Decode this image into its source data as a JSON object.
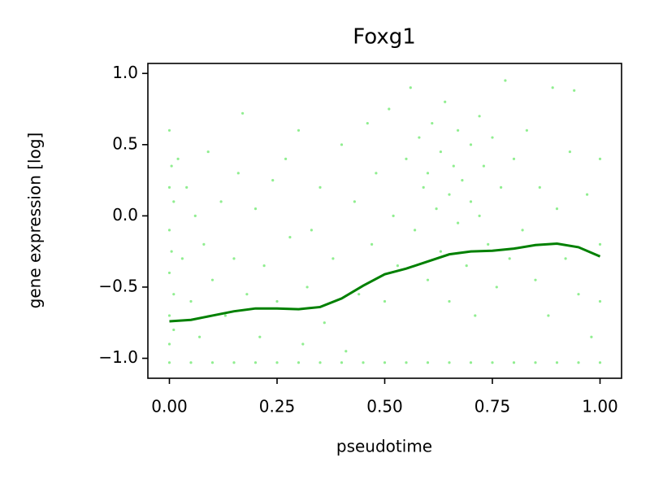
{
  "chart_data": {
    "type": "scatter",
    "title": "Foxg1",
    "xlabel": "pseudotime",
    "ylabel": "gene expression [log]",
    "xlim": [
      -0.05,
      1.05
    ],
    "ylim": [
      -1.14,
      1.07
    ],
    "xticks": [
      {
        "value": 0,
        "label": "0.00"
      },
      {
        "value": 0.25,
        "label": "0.25"
      },
      {
        "value": 0.5,
        "label": "0.50"
      },
      {
        "value": 0.75,
        "label": "0.75"
      },
      {
        "value": 1,
        "label": "1.00"
      }
    ],
    "yticks": [
      {
        "value": -1,
        "label": "−1.0"
      },
      {
        "value": -0.5,
        "label": "−0.5"
      },
      {
        "value": 0,
        "label": "0.0"
      },
      {
        "value": 0.5,
        "label": "0.5"
      },
      {
        "value": 1,
        "label": "1.0"
      }
    ],
    "series": [
      {
        "type": "scatter",
        "color": "#90ee90",
        "x": [
          0,
          0,
          0,
          0,
          0,
          0,
          0.005,
          0.005,
          0.01,
          0.01,
          0.01,
          0.02,
          0.03,
          0.04,
          0.05,
          0.06,
          0.07,
          0.08,
          0.09,
          0.1,
          0.12,
          0.13,
          0.15,
          0.16,
          0.17,
          0.18,
          0.2,
          0.21,
          0.22,
          0.24,
          0.25,
          0.27,
          0.28,
          0.3,
          0.31,
          0.32,
          0.33,
          0.35,
          0.36,
          0.38,
          0.4,
          0.41,
          0.43,
          0.44,
          0.46,
          0.47,
          0.48,
          0.5,
          0.51,
          0.52,
          0.53,
          0.55,
          0.56,
          0.57,
          0.58,
          0.59,
          0.6,
          0.6,
          0.61,
          0.62,
          0.63,
          0.63,
          0.64,
          0.65,
          0.65,
          0.66,
          0.67,
          0.67,
          0.68,
          0.69,
          0.7,
          0.7,
          0.71,
          0.72,
          0.72,
          0.73,
          0.74,
          0.75,
          0.76,
          0.77,
          0.78,
          0.79,
          0.8,
          0.82,
          0.83,
          0.85,
          0.86,
          0.88,
          0.89,
          0.9,
          0.92,
          0.93,
          0.94,
          0.95,
          0.97,
          0.98,
          1,
          1,
          1,
          0,
          0.05,
          0.1,
          0.15,
          0.2,
          0.25,
          0.3,
          0.35,
          0.4,
          0.45,
          0.5,
          0.55,
          0.6,
          0.65,
          0.7,
          0.75,
          0.8,
          0.85,
          0.9,
          0.95,
          1
        ],
        "values": [
          0.6,
          0.2,
          -0.1,
          -0.4,
          -0.7,
          -0.9,
          0.35,
          -0.25,
          0.1,
          -0.55,
          -0.8,
          0.4,
          -0.3,
          0.2,
          -0.6,
          0,
          -0.85,
          -0.2,
          0.45,
          -0.45,
          0.1,
          -0.7,
          -0.3,
          0.3,
          0.72,
          -0.55,
          0.05,
          -0.85,
          -0.35,
          0.25,
          -0.6,
          0.4,
          -0.15,
          0.6,
          -0.9,
          -0.5,
          -0.1,
          0.2,
          -0.75,
          -0.3,
          0.5,
          -0.95,
          0.1,
          -0.55,
          0.65,
          -0.2,
          0.3,
          -0.6,
          0.75,
          0,
          -0.35,
          0.4,
          0.9,
          -0.1,
          0.55,
          0.2,
          -0.45,
          0.3,
          0.65,
          0.05,
          -0.25,
          0.45,
          0.8,
          0.15,
          -0.6,
          0.35,
          0.6,
          -0.05,
          0.25,
          -0.35,
          0.5,
          0.1,
          -0.7,
          0.7,
          0,
          0.35,
          -0.2,
          0.55,
          -0.5,
          0.2,
          0.95,
          -0.3,
          0.4,
          -0.1,
          0.6,
          -0.45,
          0.2,
          -0.7,
          0.9,
          0.05,
          -0.3,
          0.45,
          0.88,
          -0.55,
          0.15,
          -0.85,
          0.4,
          -0.2,
          -0.6,
          -1.03,
          -1.03,
          -1.03,
          -1.03,
          -1.03,
          -1.03,
          -1.03,
          -1.03,
          -1.03,
          -1.03,
          -1.03,
          -1.03,
          -1.03,
          -1.03,
          -1.03,
          -1.03,
          -1.03,
          -1.03,
          -1.03,
          -1.03,
          -1.03
        ]
      },
      {
        "type": "line",
        "color": "#008000",
        "x": [
          0,
          0.05,
          0.1,
          0.15,
          0.2,
          0.25,
          0.3,
          0.35,
          0.4,
          0.45,
          0.5,
          0.55,
          0.6,
          0.65,
          0.7,
          0.75,
          0.8,
          0.85,
          0.9,
          0.95,
          1
        ],
        "values": [
          -0.74,
          -0.73,
          -0.7,
          -0.67,
          -0.65,
          -0.65,
          -0.655,
          -0.64,
          -0.58,
          -0.49,
          -0.41,
          -0.37,
          -0.32,
          -0.27,
          -0.25,
          -0.245,
          -0.23,
          -0.205,
          -0.195,
          -0.22,
          -0.285
        ]
      }
    ]
  }
}
